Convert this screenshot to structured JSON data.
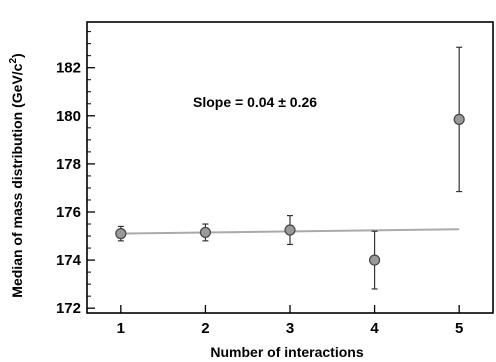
{
  "chart_data": {
    "type": "scatter",
    "xlabel": "Number of interactions",
    "ylabel_main": "Median of mass distribution (GeV/c",
    "ylabel_sup": "2",
    "ylabel_close": ")",
    "xlim": [
      0.6,
      5.4
    ],
    "ylim": [
      171.8,
      183.9
    ],
    "xticks": [
      1,
      2,
      3,
      4,
      5
    ],
    "yticks": [
      172,
      174,
      176,
      178,
      180,
      182
    ],
    "xtick_labels": [
      "1",
      "2",
      "3",
      "4",
      "5"
    ],
    "ytick_labels": [
      "172",
      "174",
      "176",
      "178",
      "180",
      "182"
    ],
    "annotation": "Slope = 0.04 ± 0.26",
    "grid": false,
    "series": [
      {
        "x": [
          1,
          2,
          3,
          4,
          5
        ],
        "y": [
          175.1,
          175.15,
          175.25,
          174.0,
          179.85
        ],
        "err_low": [
          0.3,
          0.35,
          0.6,
          1.2,
          3.0
        ],
        "err_high": [
          0.3,
          0.35,
          0.6,
          1.2,
          3.0
        ]
      }
    ],
    "fit_line": {
      "x": [
        1,
        5
      ],
      "y": [
        175.1,
        175.28
      ]
    },
    "colors": {
      "marker_fill": "#999999",
      "marker_edge": "#444444",
      "fit": "#aaaaaa",
      "axis": "#000000"
    }
  }
}
